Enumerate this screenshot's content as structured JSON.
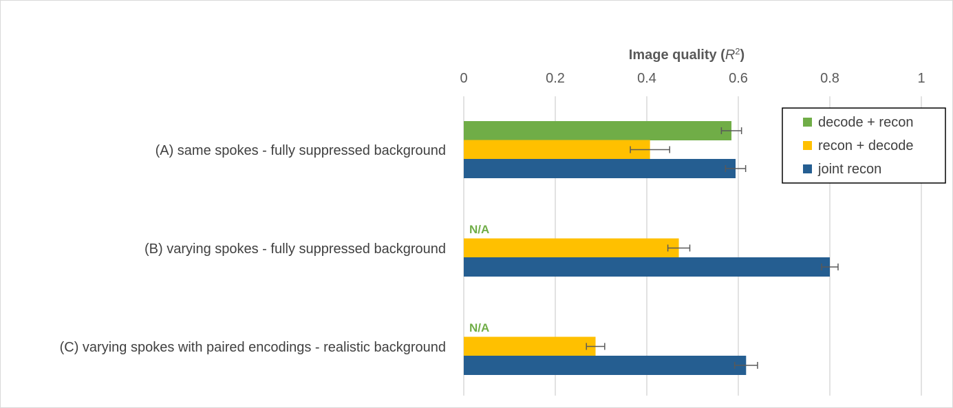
{
  "chart_data": {
    "type": "bar",
    "orientation": "horizontal",
    "title": "Image quality",
    "title_symbol": "R",
    "title_symbol_sup": "2",
    "title_open": "(",
    "title_close": ")",
    "xlabel": "Image quality (R²)",
    "ylabel": "",
    "xlim": [
      0,
      1
    ],
    "xticks": [
      0,
      0.2,
      0.4,
      0.6,
      0.8,
      1
    ],
    "xtick_labels": [
      "0",
      "0.2",
      "0.4",
      "0.6",
      "0.8",
      "1"
    ],
    "axis_position": "top",
    "grid": true,
    "legend_position": "top-right",
    "categories": [
      "(A) same spokes - fully suppressed background",
      "(B) varying spokes - fully suppressed background",
      "(C) varying spokes with paired encodings - realistic background"
    ],
    "series": [
      {
        "name": "decode + recon",
        "color": "#70ad47",
        "values": [
          0.585,
          null,
          null
        ],
        "errors": [
          0.022,
          null,
          null
        ]
      },
      {
        "name": "recon + decode",
        "color": "#ffc000",
        "values": [
          0.407,
          0.47,
          0.288
        ],
        "errors": [
          0.043,
          0.024,
          0.02
        ]
      },
      {
        "name": "joint recon",
        "color": "#255e91",
        "values": [
          0.594,
          0.8,
          0.617
        ],
        "errors": [
          0.022,
          0.018,
          0.025
        ]
      }
    ],
    "missing_label": "N/A",
    "missing_label_color": "#70ad47"
  }
}
